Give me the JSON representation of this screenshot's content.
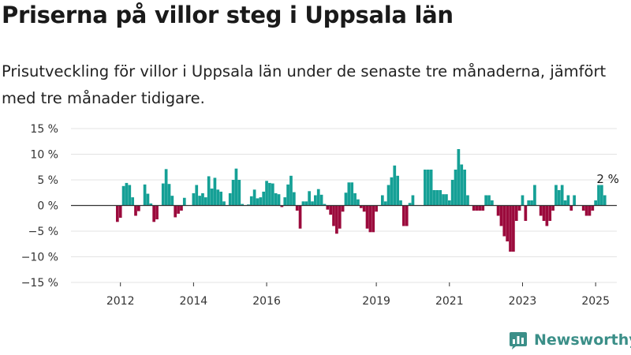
{
  "title": "Priserna på villor steg i Uppsala län",
  "subtitle": "Prisutveckling för villor i Uppsala län under de senaste tre månaderna, jämfört med tre månader tidigare.",
  "brand": {
    "name": "Newsworthy",
    "icon": "bar-chart-icon"
  },
  "colors": {
    "positive": "#15a096",
    "negative": "#9b0a3c",
    "grid": "#e3e3e3",
    "zero": "#333333"
  },
  "chart_data": {
    "type": "bar",
    "x_start": "2011-01",
    "y_unit": "%",
    "ylim": [
      -15,
      15
    ],
    "y_ticks": [
      15,
      10,
      5,
      0,
      -5,
      -10,
      -15
    ],
    "y_tick_labels": [
      "15 %",
      "10 %",
      "5 %",
      "0 %",
      "−5 %",
      "−10 %",
      "−15 %"
    ],
    "x_tick_labels": [
      {
        "label": "2012",
        "index": 12
      },
      {
        "label": "2014",
        "index": 36
      },
      {
        "label": "2016",
        "index": 60
      },
      {
        "label": "2019",
        "index": 96
      },
      {
        "label": "2021",
        "index": 120
      },
      {
        "label": "2023",
        "index": 144
      },
      {
        "label": "2025",
        "index": 168
      }
    ],
    "annotation": {
      "text": "2 %",
      "index": 172
    },
    "values": [
      null,
      null,
      null,
      null,
      null,
      null,
      null,
      null,
      null,
      null,
      null,
      -3.2,
      -2.4,
      3.8,
      4.4,
      4.0,
      1.6,
      -2.0,
      -1.1,
      null,
      4.1,
      2.3,
      0.4,
      -3.2,
      -2.7,
      null,
      4.3,
      7.1,
      4.2,
      1.9,
      -2.3,
      -1.6,
      -1.0,
      1.5,
      null,
      null,
      2.4,
      4.0,
      1.9,
      2.4,
      1.6,
      5.7,
      3.3,
      5.4,
      3.1,
      2.7,
      0.8,
      null,
      2.4,
      5.0,
      7.2,
      5.0,
      0.3,
      null,
      0.2,
      1.8,
      3.1,
      1.4,
      1.6,
      2.7,
      4.8,
      4.4,
      4.3,
      2.4,
      2.2,
      -0.3,
      1.6,
      4.1,
      5.8,
      2.6,
      -1.0,
      -4.5,
      0.8,
      0.8,
      2.8,
      0.8,
      2.0,
      3.2,
      2.1,
      0.3,
      -0.8,
      -1.8,
      -4.0,
      -5.5,
      -4.5,
      -1.2,
      2.5,
      4.5,
      4.5,
      2.4,
      1.2,
      -0.5,
      -1.2,
      -4.5,
      -5.2,
      -5.2,
      -1.2,
      null,
      2.0,
      0.8,
      4.0,
      5.5,
      7.8,
      5.8,
      1.0,
      -4.0,
      -4.0,
      0.5,
      2.0,
      null,
      null,
      null,
      7.0,
      7.0,
      7.0,
      3.0,
      3.0,
      3.0,
      2.2,
      2.2,
      1.0,
      5.0,
      7.0,
      11.0,
      8.0,
      7.0,
      2.0,
      null,
      -1.0,
      -1.0,
      -1.0,
      -1.0,
      2.0,
      2.0,
      1.0,
      null,
      -2.0,
      -4.0,
      -6.0,
      -7.0,
      -9.0,
      -9.0,
      -3.0,
      -1.0,
      2.0,
      -3.0,
      1.0,
      1.0,
      4.0,
      null,
      -2.0,
      -3.0,
      -4.0,
      -3.0,
      -1.0,
      4.0,
      3.0,
      4.0,
      1.0,
      2.0,
      -1.0,
      2.0,
      null,
      null,
      -1.0,
      -2.0,
      -2.0,
      -1.0,
      1.0,
      4.0,
      4.0,
      2.0
    ]
  }
}
